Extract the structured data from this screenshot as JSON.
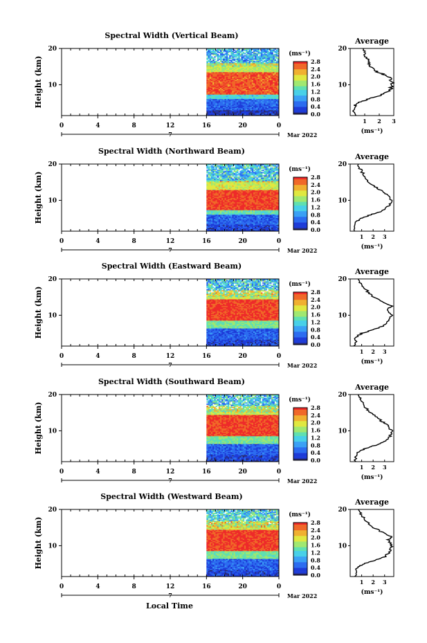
{
  "x_axis_label": "Local Time",
  "average_title": "Average",
  "colorbar_unit": "(ms⁻¹)",
  "colorbar_ticks": [
    "0.0",
    "0.4",
    "0.8",
    "1.2",
    "1.6",
    "2.0",
    "2.4",
    "2.8"
  ],
  "colors": {
    "scale": [
      "#2a2a6a",
      "#1e3cd8",
      "#2c6cf0",
      "#3aa0f5",
      "#48d0e8",
      "#60e0b0",
      "#a0e870",
      "#e0e840",
      "#f0b030",
      "#f06828",
      "#ee2a2a"
    ],
    "data_start_hour": 16
  },
  "chart_data": [
    {
      "type": "heatmap",
      "title": "Spectral Width (Vertical Beam)",
      "ylabel": "Height (km)",
      "x_ticks": [
        "0",
        "4",
        "8",
        "12",
        "16",
        "20",
        "0"
      ],
      "x_range": [
        0,
        24
      ],
      "y_ticks": [
        "10",
        "20"
      ],
      "y_range": [
        1.5,
        20
      ],
      "date_label": "7",
      "month_label": "Mar 2022",
      "colorbar_range": [
        0.0,
        2.8
      ],
      "layers": [
        {
          "from_km": 1.5,
          "to_km": 3.0,
          "value": 0.2
        },
        {
          "from_km": 3.0,
          "to_km": 6.0,
          "value": 0.5
        },
        {
          "from_km": 6.0,
          "to_km": 7.5,
          "value": 1.2
        },
        {
          "from_km": 7.5,
          "to_km": 13.5,
          "value": 2.6
        },
        {
          "from_km": 13.5,
          "to_km": 16.0,
          "value": 1.8
        },
        {
          "from_km": 16.0,
          "to_km": 20.0,
          "value": 1.0
        }
      ],
      "average_profile": {
        "xlabel": "(ms⁻¹)",
        "ylabel": "Height (km)",
        "x_ticks": [
          "1",
          "2",
          "3"
        ],
        "xlim": [
          0,
          3
        ],
        "y_ticks": [
          "10",
          "20"
        ],
        "x": [
          0.3,
          0.3,
          0.5,
          1.2,
          2.0,
          2.6,
          2.8,
          2.9,
          2.7,
          2.2,
          1.6,
          1.3,
          1.2,
          1.0,
          0.9
        ],
        "y": [
          1.5,
          4.0,
          5.0,
          6.0,
          7.0,
          8.0,
          9.0,
          10.5,
          12.0,
          13.0,
          14.0,
          15.5,
          17.0,
          18.5,
          20.0
        ]
      }
    },
    {
      "type": "heatmap",
      "title": "Spectral Width (Northward Beam)",
      "ylabel": "Height (km)",
      "x_ticks": [
        "0",
        "4",
        "8",
        "12",
        "16",
        "20",
        "0"
      ],
      "x_range": [
        0,
        24
      ],
      "y_ticks": [
        "10",
        "20"
      ],
      "y_range": [
        1.5,
        20
      ],
      "date_label": "7",
      "month_label": "Mar 2022",
      "colorbar_range": [
        0.0,
        2.8
      ],
      "layers": [
        {
          "from_km": 1.5,
          "to_km": 3.5,
          "value": 0.3
        },
        {
          "from_km": 3.5,
          "to_km": 6.0,
          "value": 0.5
        },
        {
          "from_km": 6.0,
          "to_km": 7.5,
          "value": 1.4
        },
        {
          "from_km": 7.5,
          "to_km": 13.0,
          "value": 2.7
        },
        {
          "from_km": 13.0,
          "to_km": 15.5,
          "value": 1.9
        },
        {
          "from_km": 15.5,
          "to_km": 20.0,
          "value": 1.1
        }
      ],
      "average_profile": {
        "xlabel": "(ms⁻¹)",
        "ylabel": "Height (km)",
        "x_ticks": [
          "1",
          "2",
          "3"
        ],
        "xlim": [
          0,
          3.8
        ],
        "y_ticks": [
          "10",
          "20"
        ],
        "x": [
          0.4,
          0.5,
          0.9,
          1.8,
          2.8,
          3.4,
          3.6,
          3.3,
          2.8,
          2.0,
          1.5,
          1.2,
          0.9,
          0.7
        ],
        "y": [
          1.5,
          4.0,
          5.0,
          6.0,
          7.0,
          8.5,
          10.0,
          11.5,
          12.5,
          14.0,
          15.5,
          17.0,
          18.5,
          20.0
        ]
      }
    },
    {
      "type": "heatmap",
      "title": "Spectral Width (Eastward Beam)",
      "ylabel": "Height (km)",
      "x_ticks": [
        "0",
        "4",
        "8",
        "12",
        "16",
        "20",
        "0"
      ],
      "x_range": [
        0,
        24
      ],
      "y_ticks": [
        "10",
        "20"
      ],
      "y_range": [
        1.5,
        20
      ],
      "date_label": "7",
      "month_label": "Mar 2022",
      "colorbar_range": [
        0.0,
        2.8
      ],
      "layers": [
        {
          "from_km": 1.5,
          "to_km": 3.5,
          "value": 0.3
        },
        {
          "from_km": 3.5,
          "to_km": 6.5,
          "value": 0.5
        },
        {
          "from_km": 6.5,
          "to_km": 8.5,
          "value": 1.5
        },
        {
          "from_km": 8.5,
          "to_km": 14.5,
          "value": 2.7
        },
        {
          "from_km": 14.5,
          "to_km": 17.0,
          "value": 1.8
        },
        {
          "from_km": 17.0,
          "to_km": 20.0,
          "value": 1.1
        }
      ],
      "average_profile": {
        "xlabel": "(ms⁻¹)",
        "ylabel": "Height (km)",
        "x_ticks": [
          "1",
          "2",
          "3"
        ],
        "xlim": [
          0,
          3.8
        ],
        "y_ticks": [
          "10",
          "20"
        ],
        "x": [
          0.4,
          0.5,
          1.0,
          2.0,
          2.8,
          3.4,
          3.6,
          3.3,
          3.6,
          2.6,
          1.8,
          1.4,
          1.0,
          0.7
        ],
        "y": [
          1.5,
          4.0,
          5.0,
          6.0,
          7.0,
          8.5,
          10.0,
          11.5,
          12.5,
          14.0,
          15.5,
          17.0,
          18.5,
          20.0
        ]
      }
    },
    {
      "type": "heatmap",
      "title": "Spectral Width (Southward Beam)",
      "ylabel": "Height (km)",
      "x_ticks": [
        "0",
        "4",
        "8",
        "12",
        "16",
        "20",
        "0"
      ],
      "x_range": [
        0,
        24
      ],
      "y_ticks": [
        "10",
        "20"
      ],
      "y_range": [
        1.5,
        20
      ],
      "date_label": "7",
      "month_label": "Mar 2022",
      "colorbar_range": [
        0.0,
        2.8
      ],
      "layers": [
        {
          "from_km": 1.5,
          "to_km": 3.5,
          "value": 0.3
        },
        {
          "from_km": 3.5,
          "to_km": 6.5,
          "value": 0.5
        },
        {
          "from_km": 6.5,
          "to_km": 8.5,
          "value": 1.5
        },
        {
          "from_km": 8.5,
          "to_km": 14.5,
          "value": 2.7
        },
        {
          "from_km": 14.5,
          "to_km": 17.0,
          "value": 1.8
        },
        {
          "from_km": 17.0,
          "to_km": 20.0,
          "value": 1.1
        }
      ],
      "average_profile": {
        "xlabel": "(ms⁻¹)",
        "ylabel": "Height (km)",
        "x_ticks": [
          "1",
          "2",
          "3"
        ],
        "xlim": [
          0,
          3.8
        ],
        "y_ticks": [
          "10",
          "20"
        ],
        "x": [
          0.4,
          0.6,
          1.2,
          2.2,
          3.0,
          3.5,
          3.6,
          3.3,
          2.8,
          2.2,
          1.6,
          1.2,
          0.9,
          0.7
        ],
        "y": [
          1.5,
          4.0,
          5.0,
          6.0,
          7.0,
          8.5,
          10.0,
          11.5,
          12.5,
          14.0,
          15.5,
          17.0,
          18.5,
          20.0
        ]
      }
    },
    {
      "type": "heatmap",
      "title": "Spectral Width (Westward Beam)",
      "ylabel": "Height (km)",
      "x_ticks": [
        "0",
        "4",
        "8",
        "12",
        "16",
        "20",
        "0"
      ],
      "x_range": [
        0,
        24
      ],
      "y_ticks": [
        "10",
        "20"
      ],
      "y_range": [
        1.5,
        20
      ],
      "date_label": "7",
      "month_label": "Mar 2022",
      "colorbar_range": [
        0.0,
        2.8
      ],
      "layers": [
        {
          "from_km": 1.5,
          "to_km": 3.5,
          "value": 0.3
        },
        {
          "from_km": 3.5,
          "to_km": 6.5,
          "value": 0.5
        },
        {
          "from_km": 6.5,
          "to_km": 8.5,
          "value": 1.5
        },
        {
          "from_km": 8.5,
          "to_km": 14.5,
          "value": 2.7
        },
        {
          "from_km": 14.5,
          "to_km": 17.0,
          "value": 1.9
        },
        {
          "from_km": 17.0,
          "to_km": 20.0,
          "value": 1.2
        }
      ],
      "average_profile": {
        "xlabel": "(ms⁻¹)",
        "ylabel": "Height (km)",
        "x_ticks": [
          "1",
          "2",
          "3"
        ],
        "xlim": [
          0,
          3.8
        ],
        "y_ticks": [
          "10",
          "20"
        ],
        "x": [
          0.4,
          0.6,
          1.2,
          2.2,
          3.0,
          3.5,
          3.6,
          3.3,
          3.6,
          2.6,
          1.8,
          1.3,
          1.0,
          0.7
        ],
        "y": [
          1.5,
          4.0,
          5.0,
          6.0,
          7.0,
          8.5,
          10.0,
          11.5,
          12.5,
          14.0,
          15.5,
          17.0,
          18.5,
          20.0
        ]
      }
    }
  ]
}
